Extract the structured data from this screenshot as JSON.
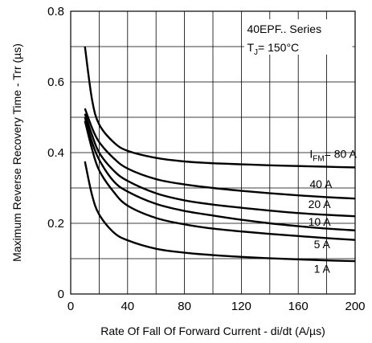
{
  "chart_data": {
    "type": "line",
    "title": "",
    "xlabel": "Rate Of Fall Of Forward Current - di/dt (A/µs)",
    "ylabel": "Maximum Reverse Recovery Time - Trr (µs)",
    "xlim": [
      0,
      200
    ],
    "ylim": [
      0,
      0.8
    ],
    "x_ticks": [
      "0",
      "40",
      "80",
      "120",
      "160",
      "200"
    ],
    "y_ticks": [
      "0",
      "0.2",
      "0.4",
      "0.6",
      "0.8"
    ],
    "grid": true,
    "annotation": {
      "series_label": "40EPF.. Series",
      "tj_prefix": "T",
      "tj_sub": "J",
      "tj_value": "= 150°C"
    },
    "series": [
      {
        "name": "I FM= 80 A",
        "label_main": "I",
        "label_sub": "FM",
        "label_rest": "= 80 A",
        "x": [
          10,
          15,
          20,
          30,
          40,
          60,
          80,
          100,
          120,
          140,
          160,
          180,
          200
        ],
        "y": [
          0.7,
          0.55,
          0.48,
          0.43,
          0.405,
          0.385,
          0.375,
          0.37,
          0.367,
          0.364,
          0.362,
          0.36,
          0.358
        ]
      },
      {
        "name": "40 A",
        "label_main": "40 A",
        "label_sub": "",
        "label_rest": "",
        "x": [
          10,
          15,
          20,
          30,
          40,
          60,
          80,
          100,
          120,
          140,
          160,
          180,
          200
        ],
        "y": [
          0.525,
          0.47,
          0.43,
          0.385,
          0.355,
          0.325,
          0.31,
          0.3,
          0.292,
          0.285,
          0.279,
          0.274,
          0.27
        ]
      },
      {
        "name": "20 A",
        "label_main": "20 A",
        "label_sub": "",
        "label_rest": "",
        "x": [
          10,
          15,
          20,
          30,
          40,
          60,
          80,
          100,
          120,
          140,
          160,
          180,
          200
        ],
        "y": [
          0.51,
          0.45,
          0.4,
          0.35,
          0.32,
          0.285,
          0.265,
          0.253,
          0.244,
          0.236,
          0.229,
          0.224,
          0.22
        ]
      },
      {
        "name": "10 A",
        "label_main": "10 A",
        "label_sub": "",
        "label_rest": "",
        "x": [
          10,
          15,
          20,
          30,
          40,
          60,
          80,
          100,
          120,
          140,
          160,
          180,
          200
        ],
        "y": [
          0.5,
          0.43,
          0.38,
          0.32,
          0.29,
          0.255,
          0.235,
          0.222,
          0.21,
          0.2,
          0.192,
          0.185,
          0.18
        ]
      },
      {
        "name": "5 A",
        "label_main": "5 A",
        "label_sub": "",
        "label_rest": "",
        "x": [
          10,
          15,
          20,
          30,
          40,
          60,
          80,
          100,
          120,
          140,
          160,
          180,
          200
        ],
        "y": [
          0.49,
          0.41,
          0.35,
          0.29,
          0.25,
          0.215,
          0.197,
          0.185,
          0.177,
          0.17,
          0.164,
          0.158,
          0.153
        ]
      },
      {
        "name": "1 A",
        "label_main": "1 A",
        "label_sub": "",
        "label_rest": "",
        "x": [
          10,
          15,
          20,
          30,
          40,
          60,
          80,
          100,
          120,
          140,
          160,
          180,
          200
        ],
        "y": [
          0.375,
          0.28,
          0.225,
          0.175,
          0.152,
          0.128,
          0.117,
          0.11,
          0.105,
          0.101,
          0.098,
          0.095,
          0.093
        ]
      }
    ]
  }
}
